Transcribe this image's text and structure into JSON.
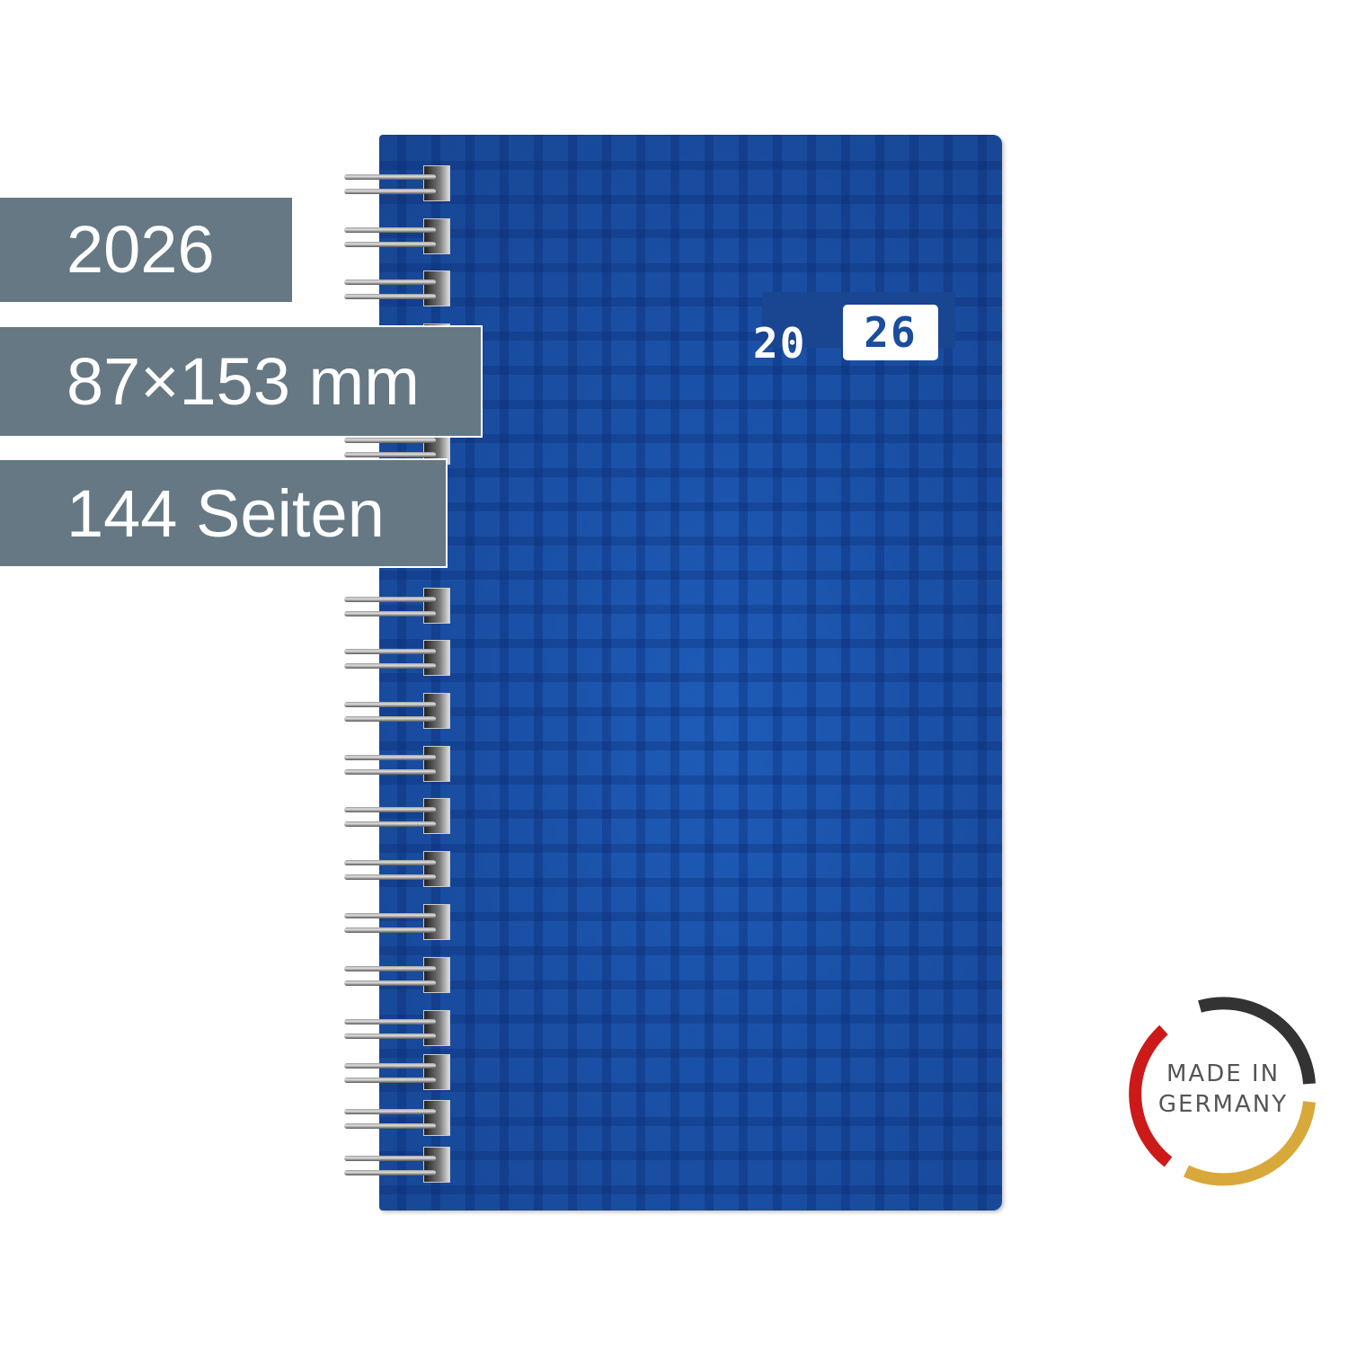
{
  "labels": {
    "year": "2026",
    "size": "87×153 mm",
    "pages": "144 Seiten"
  },
  "cover": {
    "year_left": "20",
    "year_right": "26",
    "color": "#1a50a6"
  },
  "badge": {
    "line1": "MADE IN",
    "line2": "GERMANY",
    "colors": [
      "#333333",
      "#cc1a1a",
      "#d9a83a"
    ]
  },
  "label_color": "#657883"
}
